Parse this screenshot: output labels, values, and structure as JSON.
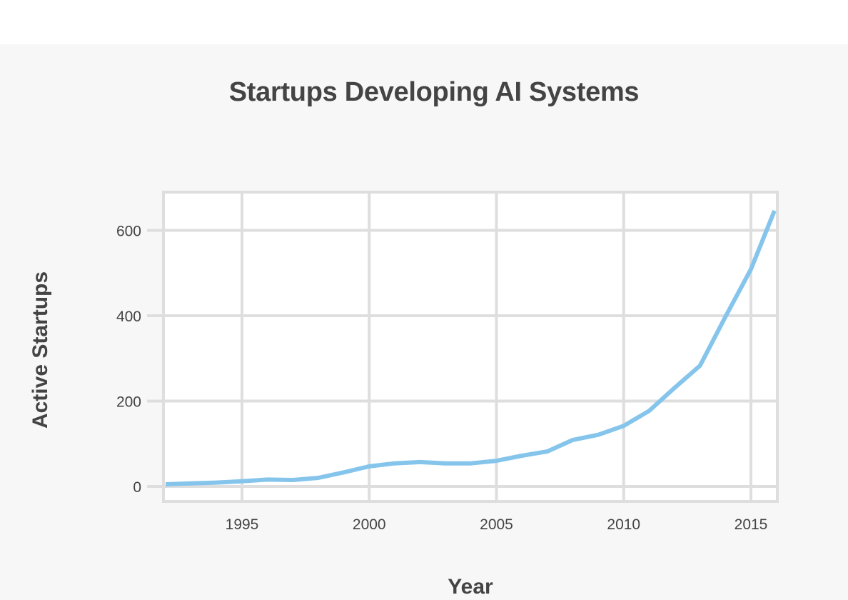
{
  "chart_data": {
    "type": "line",
    "title": "Startups Developing AI Systems",
    "xlabel": "Year",
    "ylabel": "Active Startups",
    "x": [
      1992,
      1993,
      1994,
      1995,
      1996,
      1997,
      1998,
      1999,
      2000,
      2001,
      2002,
      2003,
      2004,
      2005,
      2006,
      2007,
      2008,
      2009,
      2010,
      2011,
      2012,
      2013,
      2014,
      2015,
      2016
    ],
    "series": [
      {
        "name": "Active Startups",
        "color": "#85c5ec",
        "values": [
          5,
          7,
          9,
          12,
          16,
          15,
          20,
          33,
          47,
          54,
          57,
          54,
          54,
          60,
          72,
          82,
          109,
          121,
          142,
          177,
          231,
          283,
          398,
          509,
          646
        ]
      }
    ],
    "xticks": [
      "1995",
      "2000",
      "2005",
      "2010",
      "2015"
    ],
    "xtick_values": [
      1995,
      2000,
      2005,
      2010,
      2015
    ],
    "yticks": [
      "0",
      "200",
      "400",
      "600"
    ],
    "ytick_values": [
      0,
      200,
      400,
      600
    ],
    "xlim": [
      1991.9,
      2016.1
    ],
    "ylim": [
      -36,
      692
    ],
    "grid": true,
    "legend": "none"
  },
  "colors": {
    "line": "#85c5ec",
    "grid": "#dedede",
    "text": "#444444",
    "panel_bg": "#f7f7f7",
    "plot_bg": "#ffffff"
  }
}
